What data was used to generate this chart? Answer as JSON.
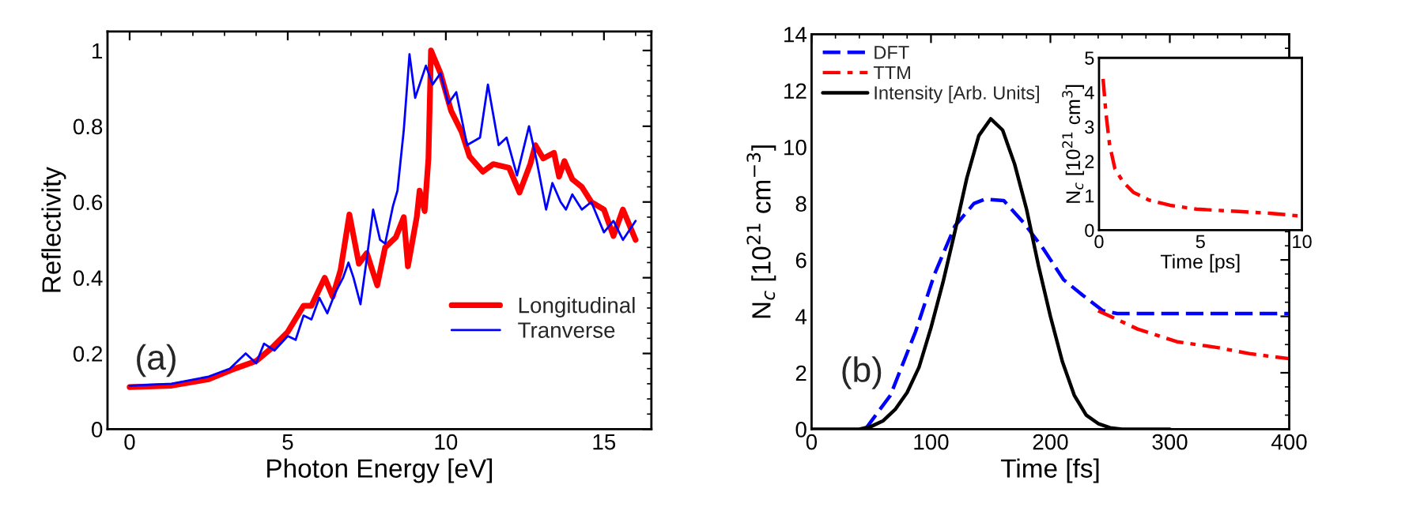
{
  "chart_data": [
    {
      "type": "line",
      "xlabel": "Photon Energy [eV]",
      "ylabel": "Reflectivity",
      "xlim": [
        -0.7,
        16.5
      ],
      "ylim": [
        0,
        1.05
      ],
      "xticks": [
        0,
        5,
        10,
        15
      ],
      "yticks": [
        0,
        {
          "value": 0.2,
          "label": "0.2"
        },
        {
          "value": 0.4,
          "label": "0.4"
        },
        {
          "value": 0.6,
          "label": "0.6"
        },
        {
          "value": 0.8,
          "label": "0.8"
        },
        1
      ],
      "grid": false,
      "legend": "lower right",
      "annotations": [
        "(a)"
      ],
      "series": [
        {
          "name": "Longitudinal",
          "color": "#ff0000",
          "line_style": "solid",
          "x": [
            0,
            1.33,
            2.5,
            3.33,
            4.0,
            4.5,
            5.0,
            5.5,
            5.75,
            6.17,
            6.42,
            6.67,
            6.95,
            7.25,
            7.5,
            7.83,
            8.08,
            8.42,
            8.67,
            8.8,
            9.08,
            9.17,
            9.33,
            9.45,
            9.53,
            9.83,
            10.17,
            10.5,
            10.75,
            11.17,
            11.5,
            12.0,
            12.33,
            12.67,
            12.83,
            13.08,
            13.42,
            13.58,
            13.75,
            14.0,
            14.3,
            14.6,
            15.0,
            15.3,
            15.6,
            16.0
          ],
          "values": [
            0.111,
            0.115,
            0.132,
            0.16,
            0.18,
            0.215,
            0.257,
            0.326,
            0.326,
            0.4,
            0.35,
            0.42,
            0.567,
            0.437,
            0.465,
            0.38,
            0.48,
            0.507,
            0.56,
            0.43,
            0.56,
            0.63,
            0.576,
            0.715,
            1.0,
            0.94,
            0.84,
            0.785,
            0.72,
            0.68,
            0.7,
            0.69,
            0.625,
            0.7,
            0.75,
            0.715,
            0.73,
            0.667,
            0.708,
            0.66,
            0.64,
            0.6,
            0.58,
            0.51,
            0.58,
            0.5
          ]
        },
        {
          "name": "Tranverse",
          "color": "#0000ff",
          "line_style": "solid",
          "x": [
            0,
            1.33,
            2.5,
            3.17,
            3.67,
            4.0,
            4.25,
            4.58,
            5.0,
            5.25,
            5.5,
            5.75,
            6.0,
            6.25,
            6.5,
            6.75,
            6.92,
            7.08,
            7.3,
            7.5,
            7.7,
            7.92,
            8.08,
            8.33,
            8.47,
            8.67,
            8.85,
            9.03,
            9.37,
            9.58,
            9.83,
            10.08,
            10.33,
            10.67,
            11.08,
            11.33,
            11.67,
            11.92,
            12.25,
            12.63,
            12.87,
            13.17,
            13.37,
            13.63,
            13.8,
            14.0,
            14.3,
            14.6,
            15.0,
            15.3,
            15.6,
            16.0
          ],
          "values": [
            0.115,
            0.12,
            0.139,
            0.16,
            0.2,
            0.174,
            0.226,
            0.208,
            0.246,
            0.236,
            0.3,
            0.29,
            0.347,
            0.306,
            0.36,
            0.4,
            0.44,
            0.4,
            0.33,
            0.45,
            0.58,
            0.5,
            0.49,
            0.59,
            0.63,
            0.79,
            0.99,
            0.875,
            0.96,
            0.91,
            0.94,
            0.86,
            0.89,
            0.75,
            0.77,
            0.91,
            0.75,
            0.77,
            0.67,
            0.8,
            0.71,
            0.58,
            0.65,
            0.6,
            0.58,
            0.62,
            0.58,
            0.6,
            0.52,
            0.55,
            0.5,
            0.55
          ]
        }
      ]
    },
    {
      "type": "line",
      "xlabel": "Time [fs]",
      "ylabel": "N$_{c}$ [10$^{21}$ cm$^{−3}$]",
      "xlim": [
        0,
        400
      ],
      "ylim": [
        0,
        14
      ],
      "xticks": [
        0,
        100,
        200,
        300,
        400
      ],
      "yticks": [
        0,
        2,
        4,
        6,
        8,
        10,
        12,
        14
      ],
      "grid": false,
      "legend": "top left",
      "annotations": [
        "(b)"
      ],
      "series": [
        {
          "name": "DFT",
          "color": "#0000ff",
          "line_style": "dashed",
          "x": [
            45,
            66,
            87,
            103,
            120,
            136,
            145,
            161,
            178,
            194,
            211,
            227,
            244,
            256,
            300,
            400
          ],
          "values": [
            0,
            1.2,
            3.45,
            5.5,
            7.2,
            8.0,
            8.15,
            8.1,
            7.3,
            6.4,
            5.3,
            4.75,
            4.2,
            4.1,
            4.1,
            4.1
          ]
        },
        {
          "name": "TTM",
          "color": "#ff0000",
          "line_style": "dashdot",
          "x": [
            240,
            273,
            306,
            339,
            368,
            400
          ],
          "values": [
            4.2,
            3.55,
            3.1,
            2.9,
            2.67,
            2.5
          ]
        },
        {
          "name": "Intensity [Arb. Units]",
          "color": "#000000",
          "line_style": "solid",
          "x": [
            0,
            40,
            50,
            60,
            70,
            80,
            90,
            100,
            110,
            120,
            130,
            140,
            150,
            160,
            170,
            180,
            190,
            200,
            210,
            220,
            230,
            240,
            250,
            260,
            300
          ],
          "values": [
            0,
            0,
            0.1,
            0.3,
            0.7,
            1.3,
            2.2,
            3.6,
            5.2,
            7.0,
            8.9,
            10.4,
            11.0,
            10.6,
            9.4,
            7.8,
            5.8,
            4.0,
            2.4,
            1.2,
            0.5,
            0.2,
            0.05,
            0,
            0
          ]
        }
      ]
    },
    {
      "type": "line",
      "xlabel": "Time [ps]",
      "ylabel": "N$_{c}$ [10$^{21}$ cm$^{3}$]",
      "xlim": [
        0,
        10
      ],
      "ylim": [
        0,
        5
      ],
      "xticks": [
        0,
        5,
        10
      ],
      "yticks": [
        0,
        1,
        2,
        3,
        4,
        5
      ],
      "grid": false,
      "series": [
        {
          "color": "#ff0000",
          "line_style": "dashdot",
          "x": [
            0.2,
            0.34,
            0.52,
            0.78,
            1.17,
            1.69,
            2.47,
            3.5,
            4.8,
            6.9,
            8.4,
            9.9
          ],
          "values": [
            4.39,
            3.4,
            2.48,
            1.79,
            1.41,
            1.1,
            0.87,
            0.72,
            0.61,
            0.54,
            0.49,
            0.41
          ]
        }
      ]
    }
  ]
}
